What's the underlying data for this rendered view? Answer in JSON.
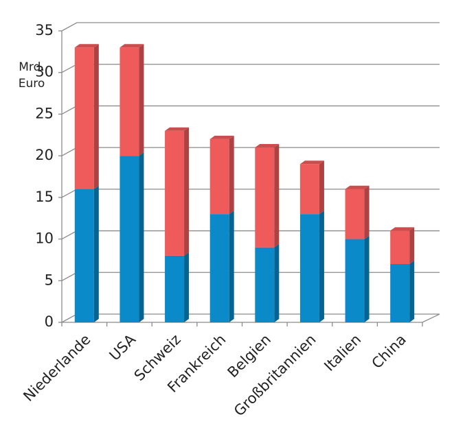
{
  "chart_data": {
    "type": "stacked-bar-3d",
    "y_label": [
      "Mrd.",
      "Euro"
    ],
    "categories": [
      "Niederlande",
      "USA",
      "Schweiz",
      "Frankreich",
      "Belgien",
      "Großbritannien",
      "Italien",
      "China"
    ],
    "series": [
      {
        "color": "#0a8ac8",
        "values": [
          16,
          20,
          8,
          13,
          9,
          13,
          10,
          7
        ]
      },
      {
        "color": "#ef5b5b",
        "values": [
          17,
          13,
          15,
          9,
          12,
          6,
          6,
          4
        ]
      }
    ],
    "ylim": [
      0,
      35
    ],
    "yticks": [
      0,
      5,
      10,
      15,
      20,
      25,
      30,
      35
    ],
    "grid": true
  }
}
